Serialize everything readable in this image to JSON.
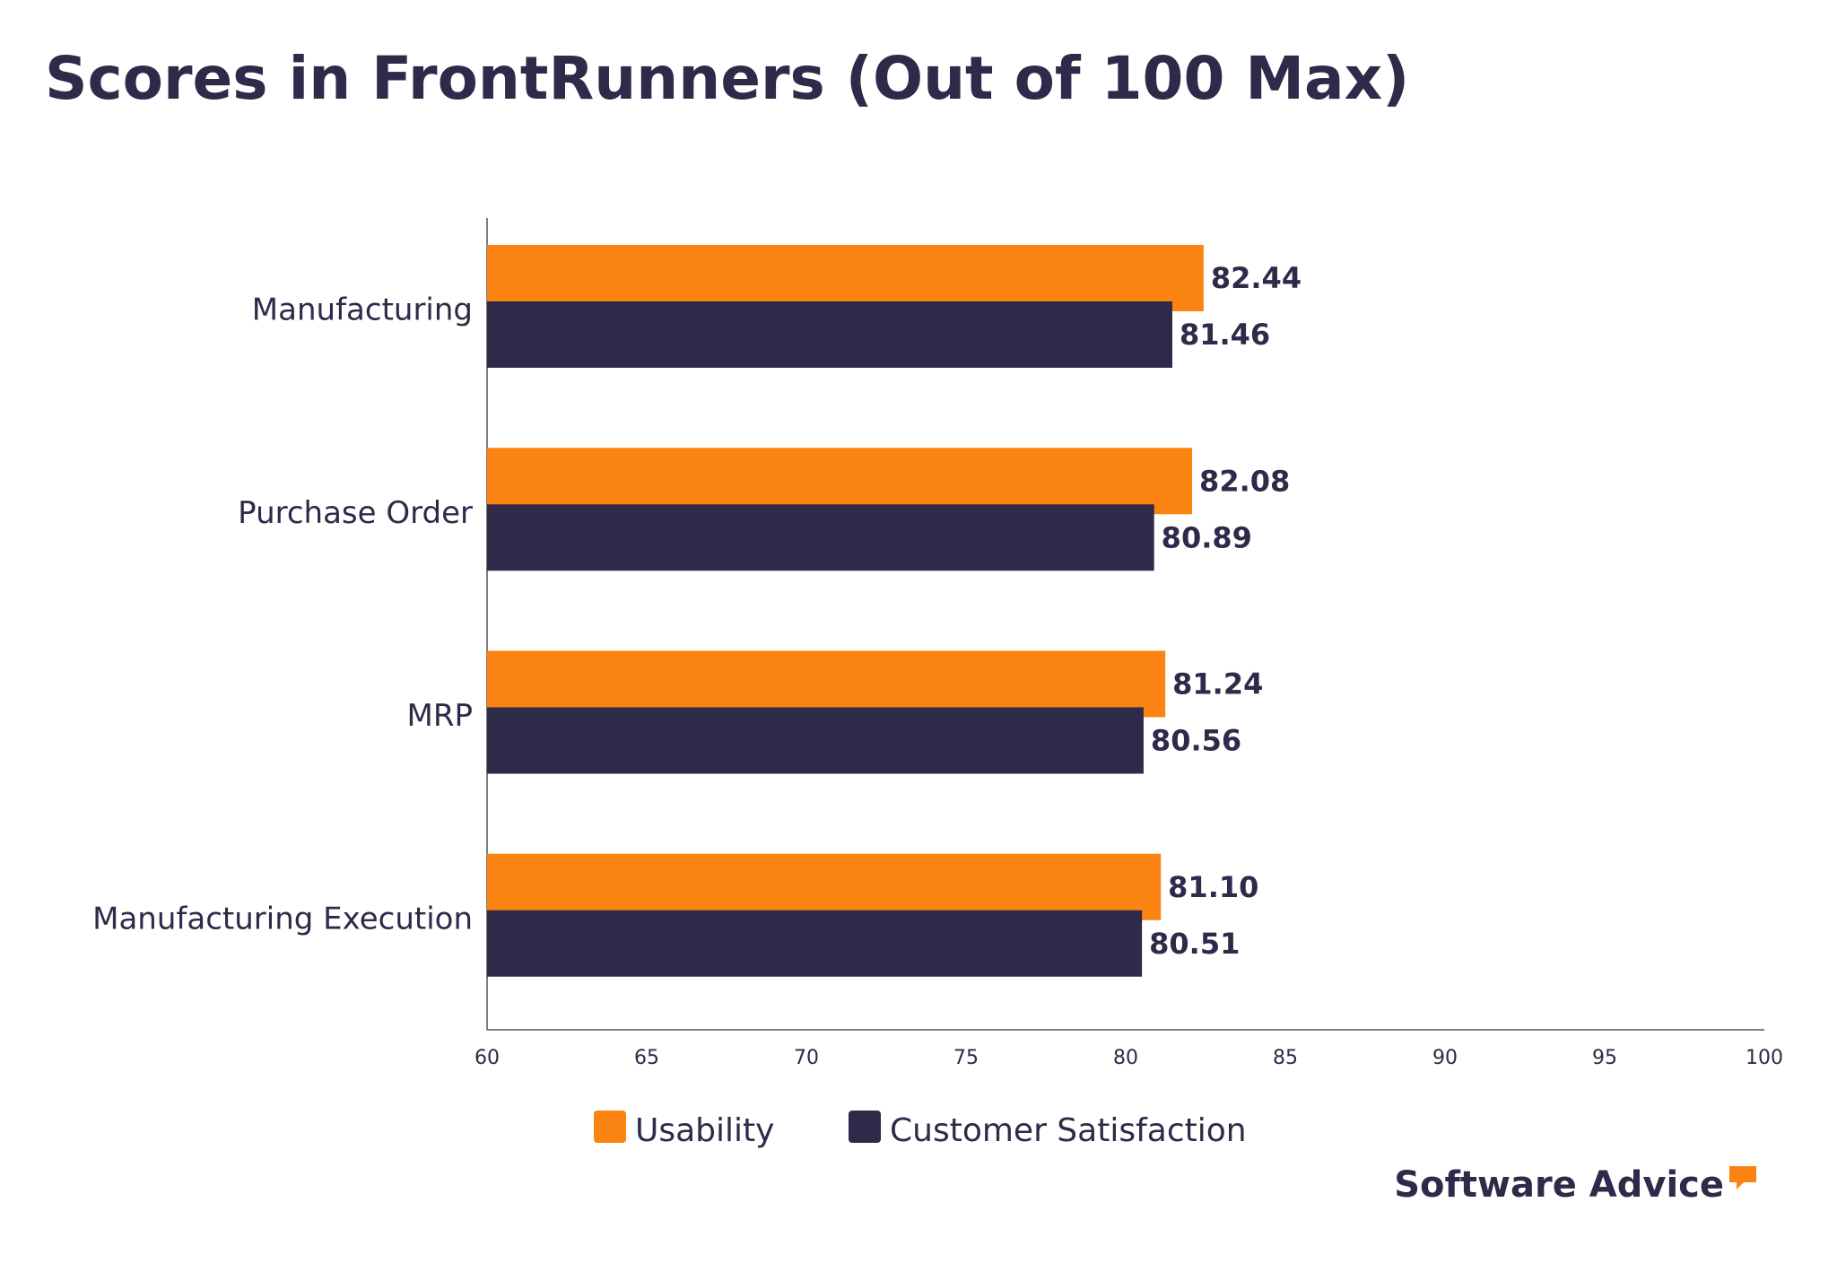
{
  "chart_data": {
    "type": "bar",
    "orientation": "horizontal",
    "title": "Scores in FrontRunners (Out of 100 Max)",
    "categories": [
      "Manufacturing",
      "Purchase Order",
      "MRP",
      "Manufacturing Execution"
    ],
    "series": [
      {
        "name": "Usability",
        "color": "#fb8312",
        "values": [
          82.44,
          82.08,
          81.24,
          81.1
        ],
        "value_labels": [
          "82.44",
          "82.08",
          "81.24",
          "81.10"
        ]
      },
      {
        "name": "Customer Satisfaction",
        "color": "#2d2a4a",
        "values": [
          81.46,
          80.89,
          80.56,
          80.51
        ],
        "value_labels": [
          "81.46",
          "80.89",
          "80.56",
          "80.51"
        ]
      }
    ],
    "xlim": [
      60,
      100
    ],
    "xticks": [
      60,
      65,
      70,
      75,
      80,
      85,
      90,
      95,
      100
    ],
    "grid": false,
    "legend": "bottom",
    "logo": "Software Advice"
  }
}
